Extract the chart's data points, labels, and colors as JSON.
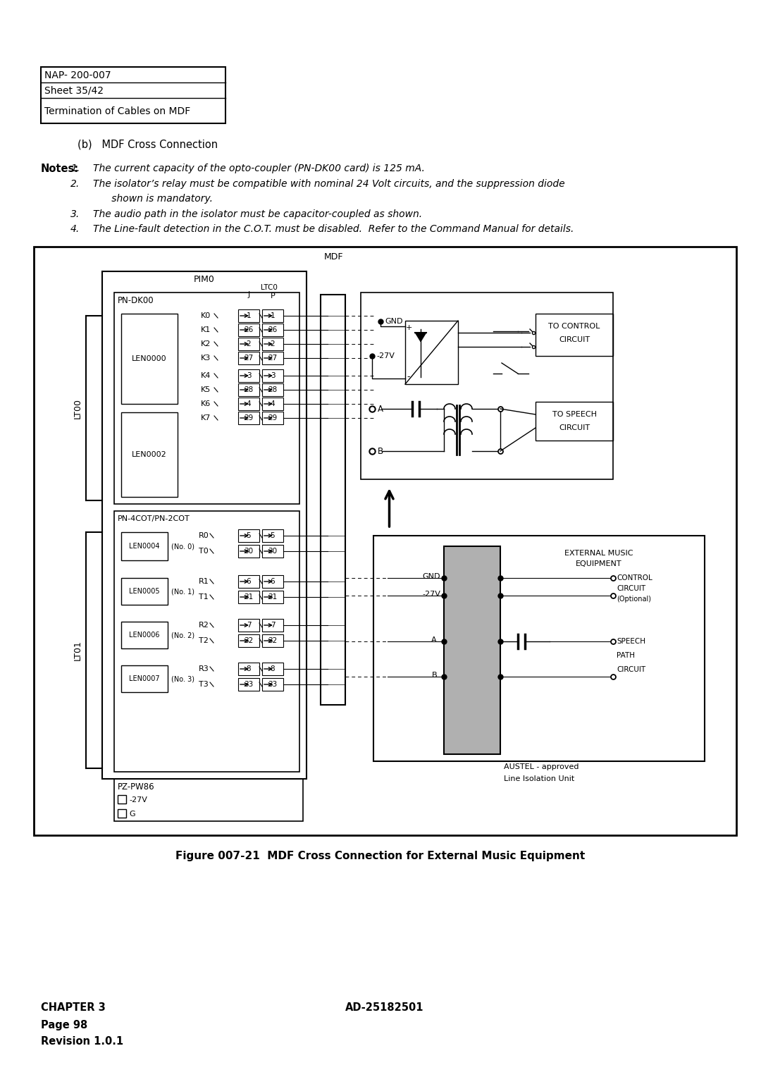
{
  "page_title_box": {
    "line1": "NAP- 200-007",
    "line2": "Sheet 35/42",
    "line3": "Termination of Cables on MDF"
  },
  "section_label": "(b)   MDF Cross Connection",
  "notes_label": "Notes:",
  "notes": [
    "1.   The current capacity of the opto-coupler (PN-DK00 card) is 125 mA.",
    "2.   The isolator’s relay must be compatible with nominal 24 Volt circuits, and the suppression diode",
    "      shown is mandatory.",
    "3.   The audio path in the isolator must be capacitor-coupled as shown.",
    "4.   The Line-fault detection in the C.O.T. must be disabled.  Refer to the Command Manual for details."
  ],
  "figure_caption": "Figure 007-21  MDF Cross Connection for External Music Equipment",
  "footer_left_lines": [
    "CHAPTER 3",
    "Page 98",
    "Revision 1.0.1"
  ],
  "footer_right": "AD-25182501",
  "background": "#ffffff"
}
